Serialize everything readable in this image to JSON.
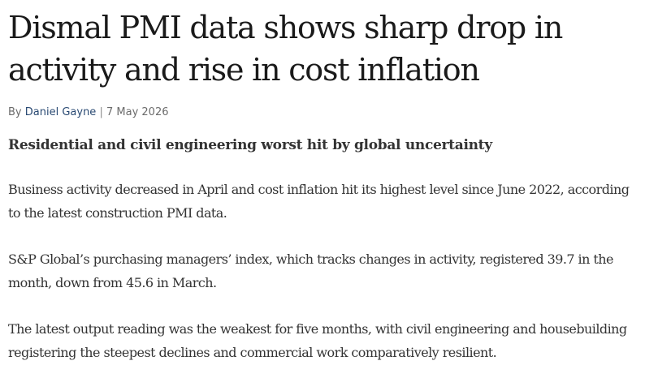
{
  "article": {
    "headline": "Dismal PMI data shows sharp drop in activity and rise in cost inflation",
    "byline": {
      "prefix": "By",
      "author": "Daniel Gayne",
      "separator": "|",
      "date": "7 May 2026"
    },
    "standfirst": "Residential and civil engineering worst hit by global uncertainty",
    "paragraphs": [
      "Business activity decreased in April and cost inflation hit its highest level since June 2022, according to the latest construction PMI data.",
      "S&P Global’s purchasing managers’ index, which tracks changes in activity, registered 39.7 in the month, down from 45.6 in March.",
      "The latest output reading was the weakest for five months, with civil engineering and housebuilding registering the steepest declines and commercial work comparatively resilient."
    ]
  },
  "colors": {
    "text": "#1a1a1a",
    "body_text": "#333333",
    "byline_text": "#6b6b6b",
    "author_link": "#2a4a73"
  }
}
